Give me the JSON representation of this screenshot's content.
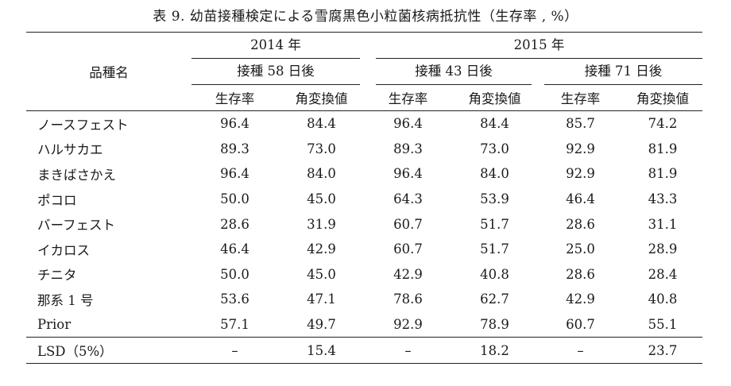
{
  "caption": "表 9.  幼苗接種検定による雪腐黒色小粒菌核病抵抗性（生存率 , %）",
  "header": {
    "variety_col": "品種名",
    "years": [
      "2014 年",
      "2015 年"
    ],
    "inoculations": [
      "接種 58 日後",
      "接種 43 日後",
      "接種 71 日後"
    ],
    "sub_cols": [
      "生存率",
      "角変換値",
      "生存率",
      "角変換値",
      "生存率",
      "角変換値"
    ]
  },
  "rows": [
    {
      "name": "ノースフェスト",
      "v": [
        "96.4",
        "84.4",
        "96.4",
        "84.4",
        "85.7",
        "74.2"
      ]
    },
    {
      "name": "ハルサカエ",
      "v": [
        "89.3",
        "73.0",
        "89.3",
        "73.0",
        "92.9",
        "81.9"
      ]
    },
    {
      "name": "まきばさかえ",
      "v": [
        "96.4",
        "84.0",
        "96.4",
        "84.0",
        "92.9",
        "81.9"
      ]
    },
    {
      "name": "ポコロ",
      "v": [
        "50.0",
        "45.0",
        "64.3",
        "53.9",
        "46.4",
        "43.3"
      ]
    },
    {
      "name": "バーフェスト",
      "v": [
        "28.6",
        "31.9",
        "60.7",
        "51.7",
        "28.6",
        "31.1"
      ]
    },
    {
      "name": "イカロス",
      "v": [
        "46.4",
        "42.9",
        "60.7",
        "51.7",
        "25.0",
        "28.9"
      ]
    },
    {
      "name": "チニタ",
      "v": [
        "50.0",
        "45.0",
        "42.9",
        "40.8",
        "28.6",
        "28.4"
      ]
    },
    {
      "name": "那系 1 号",
      "v": [
        "53.6",
        "47.1",
        "78.6",
        "62.7",
        "42.9",
        "40.8"
      ]
    },
    {
      "name": "Prior",
      "v": [
        "57.1",
        "49.7",
        "92.9",
        "78.9",
        "60.7",
        "55.1"
      ]
    }
  ],
  "lsd": {
    "name": "LSD（5%）",
    "v": [
      "–",
      "15.4",
      "–",
      "18.2",
      "–",
      "23.7"
    ]
  }
}
